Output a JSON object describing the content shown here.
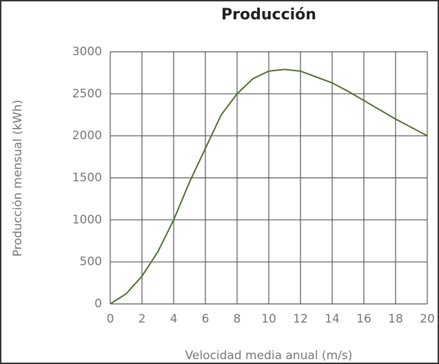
{
  "chart_data": {
    "type": "line",
    "title": "Producción",
    "x_label": "Velocidad media anual (m/s)",
    "y_label": "Producción mensual (kWh)",
    "x": [
      0,
      1,
      2,
      3,
      4,
      5,
      6,
      7,
      8,
      9,
      10,
      11,
      12,
      13,
      14,
      15,
      16,
      17,
      18,
      19,
      20
    ],
    "series": [
      {
        "name": "Producción",
        "color": "#4f6e2c",
        "values": [
          0,
          120,
          330,
          620,
          1000,
          1450,
          1850,
          2250,
          2500,
          2680,
          2770,
          2790,
          2770,
          2700,
          2630,
          2530,
          2420,
          2310,
          2200,
          2100,
          2000
        ]
      }
    ],
    "xlim": [
      0,
      20
    ],
    "xticks": [
      0,
      2,
      4,
      6,
      8,
      10,
      12,
      14,
      16,
      18,
      20
    ],
    "ylim": [
      0,
      3000
    ],
    "yticks": [
      0,
      500,
      1000,
      1500,
      2000,
      2500,
      3000
    ],
    "grid": true
  }
}
